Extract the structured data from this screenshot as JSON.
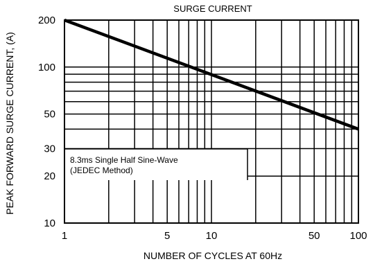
{
  "chart_data": {
    "type": "line",
    "title": "SURGE CURRENT",
    "xlabel": "NUMBER OF CYCLES AT 60Hz",
    "ylabel": "PEAK FORWARD SURGE CURRENT, (A)",
    "xscale": "log",
    "yscale": "log",
    "xlim": [
      1,
      100
    ],
    "ylim": [
      10,
      200
    ],
    "x_tick_labels": [
      "1",
      "5",
      "10",
      "50",
      "100"
    ],
    "x_tick_values": [
      1,
      5,
      10,
      50,
      100
    ],
    "y_tick_labels": [
      "200",
      "100",
      "50",
      "30",
      "20",
      "10"
    ],
    "y_tick_values": [
      200,
      100,
      50,
      30,
      20,
      10
    ],
    "x_gridlines": [
      1,
      2,
      3,
      4,
      5,
      6,
      7,
      8,
      9,
      10,
      20,
      30,
      40,
      50,
      60,
      70,
      80,
      90,
      100
    ],
    "y_gridlines": [
      10,
      20,
      30,
      40,
      50,
      60,
      70,
      80,
      90,
      100,
      200
    ],
    "grid": true,
    "series": [
      {
        "x": [
          1,
          100
        ],
        "y": [
          200,
          40
        ]
      }
    ],
    "annotation": {
      "line1": "8.3ms Single Half Sine-Wave",
      "line2": "(JEDEC Method)"
    }
  }
}
